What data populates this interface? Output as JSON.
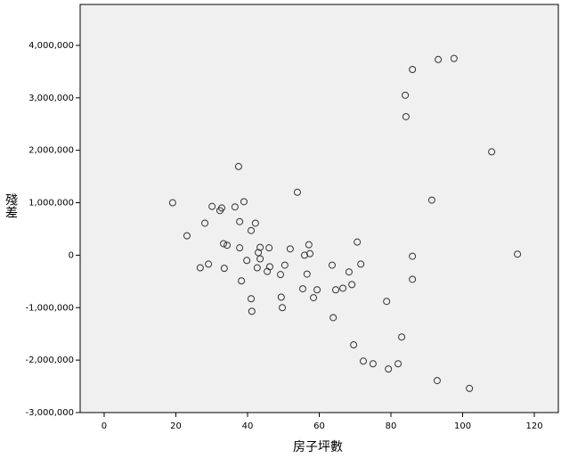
{
  "chart_data": {
    "type": "scatter",
    "x_label": "房子坪數",
    "y_label": "殘差",
    "xlim": [
      -6.7,
      126.7
    ],
    "ylim": [
      -3000000,
      4780000
    ],
    "xticks": [
      0,
      20,
      40,
      60,
      80,
      100,
      120
    ],
    "yticks": [
      {
        "value": -3000000,
        "label": "-3,000,000"
      },
      {
        "value": -2000000,
        "label": "-2,000,000"
      },
      {
        "value": -1000000,
        "label": "-1,000,000"
      },
      0,
      {
        "value": 1000000,
        "label": "1,000,000"
      },
      {
        "value": 2000000,
        "label": "2,000,000"
      },
      {
        "value": 3000000,
        "label": "3,000,000"
      },
      {
        "value": 4000000,
        "label": "4,000,000"
      }
    ],
    "grid": false,
    "color": "#333333",
    "x": [
      19.1,
      23.1,
      26.8,
      28.1,
      29.1,
      30.1,
      32.3,
      32.8,
      33.3,
      33.5,
      34.3,
      36.5,
      37.5,
      37.8,
      37.8,
      38.3,
      39.0,
      39.8,
      41.0,
      41.2,
      41.0,
      42.2,
      42.7,
      43.0,
      43.5,
      43.5,
      45.5,
      46.0,
      46.2,
      49.2,
      49.4,
      49.7,
      50.4,
      51.9,
      53.9,
      55.4,
      55.9,
      56.6,
      57.1,
      57.4,
      58.4,
      59.4,
      63.6,
      63.9,
      64.6,
      66.6,
      68.3,
      69.1,
      69.6,
      70.6,
      71.6,
      72.3,
      75.0,
      78.8,
      79.3,
      82.0,
      83.0,
      84.0,
      84.2,
      86.0,
      86.0,
      86.0,
      91.4,
      92.9,
      93.2,
      97.6,
      101.9,
      108.1,
      115.3
    ],
    "values": [
      1000000,
      370000,
      -240000,
      610000,
      -170000,
      930000,
      850000,
      900000,
      220000,
      -250000,
      190000,
      920000,
      1690000,
      640000,
      140000,
      -490000,
      1020000,
      -100000,
      -830000,
      -1070000,
      470000,
      610000,
      -240000,
      50000,
      150000,
      -70000,
      -310000,
      140000,
      -220000,
      -370000,
      -800000,
      -1000000,
      -190000,
      120000,
      1200000,
      -640000,
      0,
      -360000,
      200000,
      30000,
      -810000,
      -660000,
      -190000,
      -1190000,
      -660000,
      -630000,
      -320000,
      -560000,
      -1710000,
      250000,
      -170000,
      -2020000,
      -2070000,
      -880000,
      -2170000,
      -2070000,
      -1560000,
      3050000,
      2640000,
      -20000,
      -460000,
      3540000,
      1050000,
      -2390000,
      3730000,
      3750000,
      -2540000,
      1970000,
      20000
    ]
  }
}
